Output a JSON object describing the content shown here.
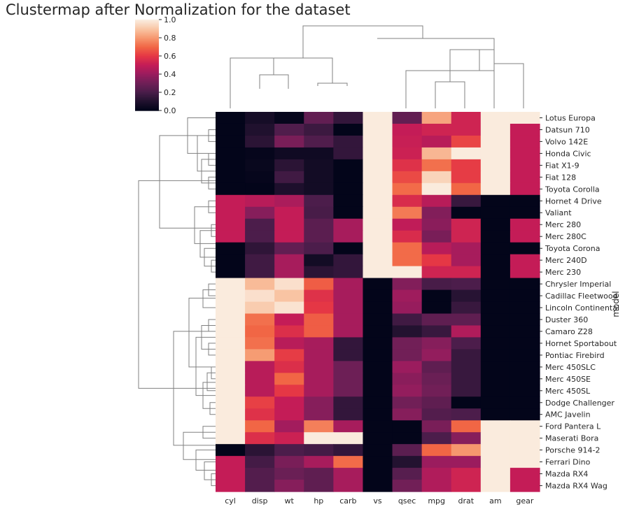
{
  "chart_data": {
    "type": "heatmap",
    "title": "Clustermap after Normalization for the dataset",
    "ylabel": "model",
    "columns": [
      "cyl",
      "disp",
      "wt",
      "hp",
      "carb",
      "vs",
      "qsec",
      "mpg",
      "drat",
      "am",
      "gear"
    ],
    "rows": [
      "Lotus Europa",
      "Datsun 710",
      "Volvo 142E",
      "Honda Civic",
      "Fiat X1-9",
      "Fiat 128",
      "Toyota Corolla",
      "Hornet 4 Drive",
      "Valiant",
      "Merc 280",
      "Merc 280C",
      "Toyota Corona",
      "Merc 240D",
      "Merc 230",
      "Chrysler Imperial",
      "Cadillac Fleetwood",
      "Lincoln Continental",
      "Duster 360",
      "Camaro Z28",
      "Hornet Sportabout",
      "Pontiac Firebird",
      "Merc 450SLC",
      "Merc 450SE",
      "Merc 450SL",
      "Dodge Challenger",
      "AMC Javelin",
      "Ford Pantera L",
      "Maserati Bora",
      "Porsche 914-2",
      "Ferrari Dino",
      "Mazda RX4",
      "Mazda RX4 Wag"
    ],
    "values": [
      [
        0.0,
        0.06,
        0.01,
        0.26,
        0.14,
        1.0,
        0.26,
        0.83,
        0.53,
        1.0,
        1.0
      ],
      [
        0.0,
        0.09,
        0.21,
        0.16,
        0.0,
        1.0,
        0.5,
        0.53,
        0.53,
        1.0,
        0.5
      ],
      [
        0.0,
        0.12,
        0.32,
        0.21,
        0.14,
        1.0,
        0.51,
        0.47,
        0.63,
        1.0,
        0.5
      ],
      [
        0.0,
        0.01,
        0.04,
        0.04,
        0.14,
        1.0,
        0.52,
        0.87,
        1.0,
        1.0,
        0.5
      ],
      [
        0.0,
        0.02,
        0.12,
        0.05,
        0.0,
        1.0,
        0.58,
        0.72,
        0.61,
        1.0,
        0.5
      ],
      [
        0.0,
        0.01,
        0.17,
        0.05,
        0.0,
        1.0,
        0.64,
        0.94,
        0.61,
        1.0,
        0.5
      ],
      [
        0.0,
        0.0,
        0.08,
        0.05,
        0.0,
        1.0,
        0.71,
        1.0,
        0.7,
        1.0,
        0.5
      ],
      [
        0.5,
        0.47,
        0.44,
        0.2,
        0.0,
        1.0,
        0.56,
        0.47,
        0.15,
        0.0,
        0.0
      ],
      [
        0.5,
        0.35,
        0.5,
        0.19,
        0.0,
        1.0,
        0.74,
        0.34,
        0.0,
        0.0,
        0.0
      ],
      [
        0.5,
        0.2,
        0.5,
        0.24,
        0.43,
        1.0,
        0.49,
        0.36,
        0.53,
        0.0,
        0.5
      ],
      [
        0.5,
        0.2,
        0.5,
        0.24,
        0.43,
        1.0,
        0.56,
        0.32,
        0.53,
        0.0,
        0.5
      ],
      [
        0.0,
        0.13,
        0.26,
        0.2,
        0.0,
        1.0,
        0.71,
        0.47,
        0.43,
        0.0,
        0.0
      ],
      [
        0.0,
        0.17,
        0.43,
        0.05,
        0.14,
        1.0,
        0.71,
        0.6,
        0.43,
        0.0,
        0.5
      ],
      [
        0.0,
        0.17,
        0.43,
        0.12,
        0.14,
        1.0,
        1.0,
        0.53,
        0.53,
        0.0,
        0.5
      ],
      [
        1.0,
        0.88,
        0.97,
        0.68,
        0.43,
        0.0,
        0.34,
        0.19,
        0.2,
        0.0,
        0.0
      ],
      [
        1.0,
        0.97,
        0.9,
        0.58,
        0.43,
        0.0,
        0.41,
        0.0,
        0.11,
        0.0,
        0.0
      ],
      [
        1.0,
        0.92,
        0.98,
        0.6,
        0.43,
        0.0,
        0.39,
        0.0,
        0.15,
        0.0,
        0.0
      ],
      [
        1.0,
        0.72,
        0.5,
        0.68,
        0.43,
        0.0,
        0.17,
        0.25,
        0.25,
        0.0,
        0.0
      ],
      [
        1.0,
        0.7,
        0.57,
        0.68,
        0.43,
        0.0,
        0.1,
        0.15,
        0.45,
        0.0,
        0.0
      ],
      [
        1.0,
        0.72,
        0.47,
        0.43,
        0.14,
        0.0,
        0.3,
        0.35,
        0.2,
        0.0,
        0.0
      ],
      [
        1.0,
        0.81,
        0.61,
        0.43,
        0.14,
        0.0,
        0.3,
        0.38,
        0.15,
        0.0,
        0.0
      ],
      [
        1.0,
        0.47,
        0.57,
        0.43,
        0.29,
        0.0,
        0.4,
        0.25,
        0.15,
        0.0,
        0.0
      ],
      [
        1.0,
        0.47,
        0.7,
        0.43,
        0.29,
        0.0,
        0.36,
        0.28,
        0.15,
        0.0,
        0.0
      ],
      [
        1.0,
        0.47,
        0.6,
        0.43,
        0.29,
        0.0,
        0.38,
        0.3,
        0.15,
        0.0,
        0.0
      ],
      [
        1.0,
        0.62,
        0.5,
        0.35,
        0.14,
        0.0,
        0.3,
        0.25,
        0.0,
        0.0,
        0.0
      ],
      [
        1.0,
        0.58,
        0.5,
        0.35,
        0.14,
        0.0,
        0.35,
        0.22,
        0.2,
        0.0,
        0.0
      ],
      [
        1.0,
        0.7,
        0.42,
        0.75,
        0.43,
        0.0,
        0.0,
        0.32,
        0.7,
        1.0,
        1.0
      ],
      [
        1.0,
        0.57,
        0.52,
        1.0,
        1.0,
        0.0,
        0.0,
        0.2,
        0.35,
        1.0,
        1.0
      ],
      [
        0.0,
        0.12,
        0.2,
        0.18,
        0.14,
        0.0,
        0.24,
        0.7,
        0.8,
        1.0,
        1.0
      ],
      [
        0.5,
        0.18,
        0.32,
        0.43,
        0.71,
        0.0,
        0.1,
        0.4,
        0.4,
        1.0,
        1.0
      ],
      [
        0.5,
        0.22,
        0.28,
        0.25,
        0.43,
        0.0,
        0.23,
        0.45,
        0.53,
        1.0,
        0.5
      ],
      [
        0.5,
        0.22,
        0.35,
        0.25,
        0.43,
        0.0,
        0.3,
        0.45,
        0.53,
        1.0,
        0.5
      ]
    ],
    "colorbar": {
      "vmin": 0.0,
      "vmax": 1.0,
      "ticks": [
        "0.0",
        "0.2",
        "0.4",
        "0.6",
        "0.8",
        "1.0"
      ]
    },
    "colormap": "rocket",
    "dendrograms": [
      "column",
      "row"
    ]
  }
}
